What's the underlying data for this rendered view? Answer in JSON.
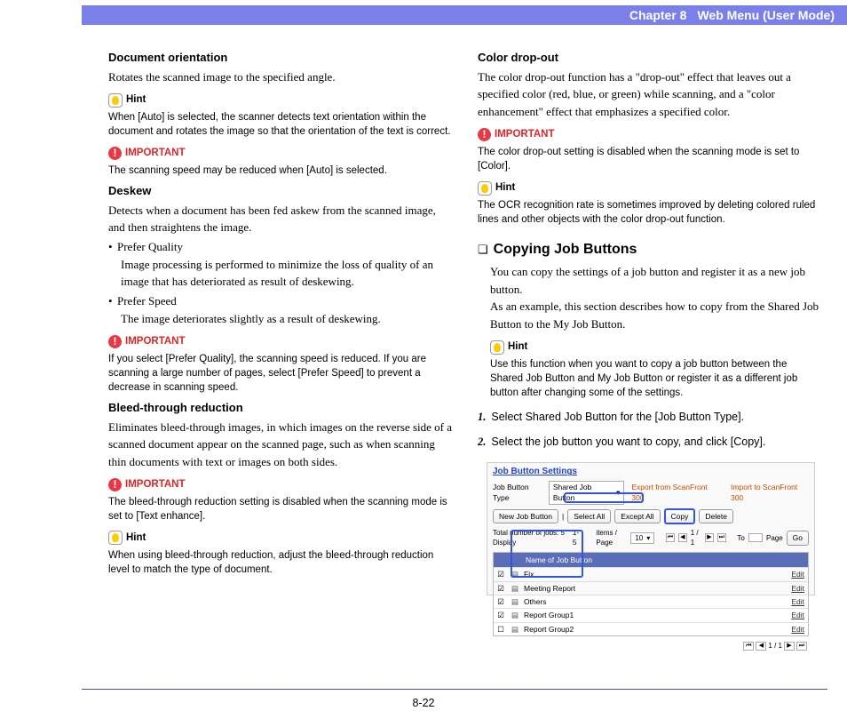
{
  "header": {
    "chapter": "Chapter 8",
    "title": "Web Menu (User Mode)"
  },
  "page_number": "8-22",
  "left": {
    "doc_orient": {
      "heading": "Document orientation",
      "desc": "Rotates the scanned image to the specified angle.",
      "hint_label": "Hint",
      "hint_text": "When [Auto] is selected, the scanner detects text orientation within the document and rotates the image so that the orientation of the text is correct.",
      "imp_label": "IMPORTANT",
      "imp_text": "The scanning speed may be reduced when [Auto] is selected."
    },
    "deskew": {
      "heading": "Deskew",
      "desc": "Detects when a document has been fed askew from the scanned image, and then straightens the image.",
      "opt1_label": "Prefer Quality",
      "opt1_desc": "Image processing is performed to minimize the loss of quality of an image that has deteriorated as result of deskewing.",
      "opt2_label": "Prefer Speed",
      "opt2_desc": "The image deteriorates slightly as a result of deskewing.",
      "imp_label": "IMPORTANT",
      "imp_text": "If you select [Prefer Quality], the scanning speed is reduced. If you are scanning a large number of pages, select [Prefer Speed] to prevent a decrease in scanning speed."
    },
    "bleed": {
      "heading": "Bleed-through reduction",
      "desc": "Eliminates bleed-through images, in which images on the reverse side of a scanned document appear on the scanned page, such as when scanning thin documents with text or images on both sides.",
      "imp_label": "IMPORTANT",
      "imp_text": "The bleed-through reduction setting is disabled when the scanning mode is set to [Text enhance].",
      "hint_label": "Hint",
      "hint_text": "When using bleed-through reduction, adjust the bleed-through reduction level to match the type of document."
    }
  },
  "right": {
    "dropout": {
      "heading": "Color drop-out",
      "desc": "The color drop-out function has a \"drop-out\" effect that leaves out a specified color (red, blue, or green) while scanning, and a \"color enhancement\" effect that emphasizes a specified color.",
      "imp_label": "IMPORTANT",
      "imp_text": "The color drop-out setting is disabled when the scanning mode is set to [Color].",
      "hint_label": "Hint",
      "hint_text": "The OCR recognition rate is sometimes improved by deleting colored ruled lines and other objects with the color drop-out function."
    },
    "copying": {
      "bullet": "❏",
      "title": "Copying Job Buttons",
      "p1": "You can copy the settings of a job button and register it as a new job button.",
      "p2": "As an example, this section describes how to copy from the Shared Job Button to the My Job Button.",
      "hint_label": "Hint",
      "hint_text": "Use this function when you want to copy a job button between the Shared Job Button and My Job Button or register it as a different job button after changing some of the settings.",
      "step1_num": "1.",
      "step1": "Select Shared Job Button for the [Job Button Type].",
      "step2_num": "2.",
      "step2": "Select the job button you want to copy, and click [Copy]."
    },
    "screenshot": {
      "title": "Job Button Settings",
      "type_label": "Job Button Type",
      "type_value": "Shared Job Button",
      "export_link": "Export from ScanFront 300",
      "import_link": "Import to ScanFront 300",
      "btn_new": "New Job Button",
      "btn_selall": "Select All",
      "btn_except": "Except All",
      "btn_copy": "Copy",
      "btn_delete": "Delete",
      "total_label": "Total number of jobs: 5 Display",
      "range": "1-5",
      "items_page": "items / Page",
      "page_size": "10",
      "pager_mid": "1 / 1",
      "to": "To",
      "page_go": "Page",
      "go": "Go",
      "col_name": "Name of Job Button",
      "col_edit": "",
      "rows": [
        {
          "checked": true,
          "name": "Fix",
          "edit": "Edit"
        },
        {
          "checked": true,
          "name": "Meeting Report",
          "edit": "Edit"
        },
        {
          "checked": true,
          "name": "Others",
          "edit": "Edit"
        },
        {
          "checked": true,
          "name": "Report Group1",
          "edit": "Edit"
        },
        {
          "checked": false,
          "name": "Report Group2",
          "edit": "Edit"
        }
      ]
    }
  }
}
